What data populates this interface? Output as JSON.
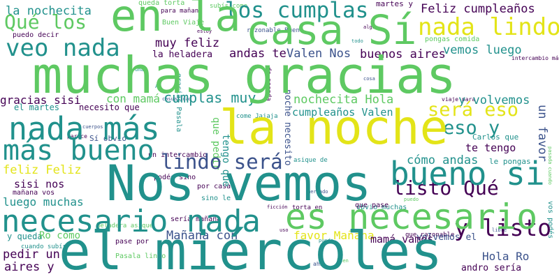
{
  "palette": {
    "purple": "#440154",
    "indigo": "#3b528b",
    "teal": "#21918c",
    "green": "#5ec962",
    "yellow": "#e3e418"
  },
  "words": [
    "en la",
    "casa Sí",
    "muchas gracias",
    "Nos vemos",
    "el miércoles",
    "la noche",
    "nada más",
    "más bueno",
    "necesario nada",
    "es necesario",
    "bueno si",
    "veo nada",
    "Qué los",
    "los cumplas",
    "nada lindo",
    "y listo",
    "listo Qué",
    "lindo será",
    "será eso",
    "eso y",
    "la nochecita",
    "Feliz cumpleaños",
    "muy feliz",
    "andas te",
    "Valen Nos",
    "buenos aires",
    "vemos luego",
    "gracias sisi",
    "con mamá",
    "cumplas muy",
    "nochecita Hola",
    "cumpleaños Valen",
    "y volvemos",
    "un favor",
    "feliz Feliz",
    "luego muchas",
    "sisi nos",
    "Mañana con",
    "favor Mañana",
    "mamá vamos",
    "Hola Ro",
    "pedir un",
    "aires y",
    "el martes",
    "necesito que",
    "Sí obvio",
    "cómo andas",
    "te tengo",
    "tengo que",
    "que pedir",
    "noche necesito",
    "un intercambio",
    "Ro cómo",
    "y queda",
    "volvemos el",
    "andro sería",
    "la heladera",
    "pongas comida",
    "martes y",
    "queda torta",
    "para mañana",
    "subís come",
    "podés sino",
    "por casa",
    "sino le",
    "le pongas",
    "Carlos que",
    "asique de",
    "sería mañana",
    "mañana vos",
    "heladera asique",
    "obvio muchas",
    "torta en",
    "que pase",
    "pase por",
    "Pasala lindo",
    "que razonable",
    "cuando subís",
    "intercambio más",
    "razonable Buen",
    "Buen Viaje",
    "puedo decir",
    "viaje para",
    "gracias Pasala",
    "de pasada",
    "come Jajaja",
    "vos podés",
    "pasada cuando",
    "libre",
    "ficción",
    "puede",
    "bien",
    "ahí",
    "todo",
    "algo",
    "estoy",
    "casualidad",
    "cuerpos",
    "parece",
    "cosa",
    "una",
    "mercado",
    "puedo",
    "uso",
    "Ai"
  ]
}
